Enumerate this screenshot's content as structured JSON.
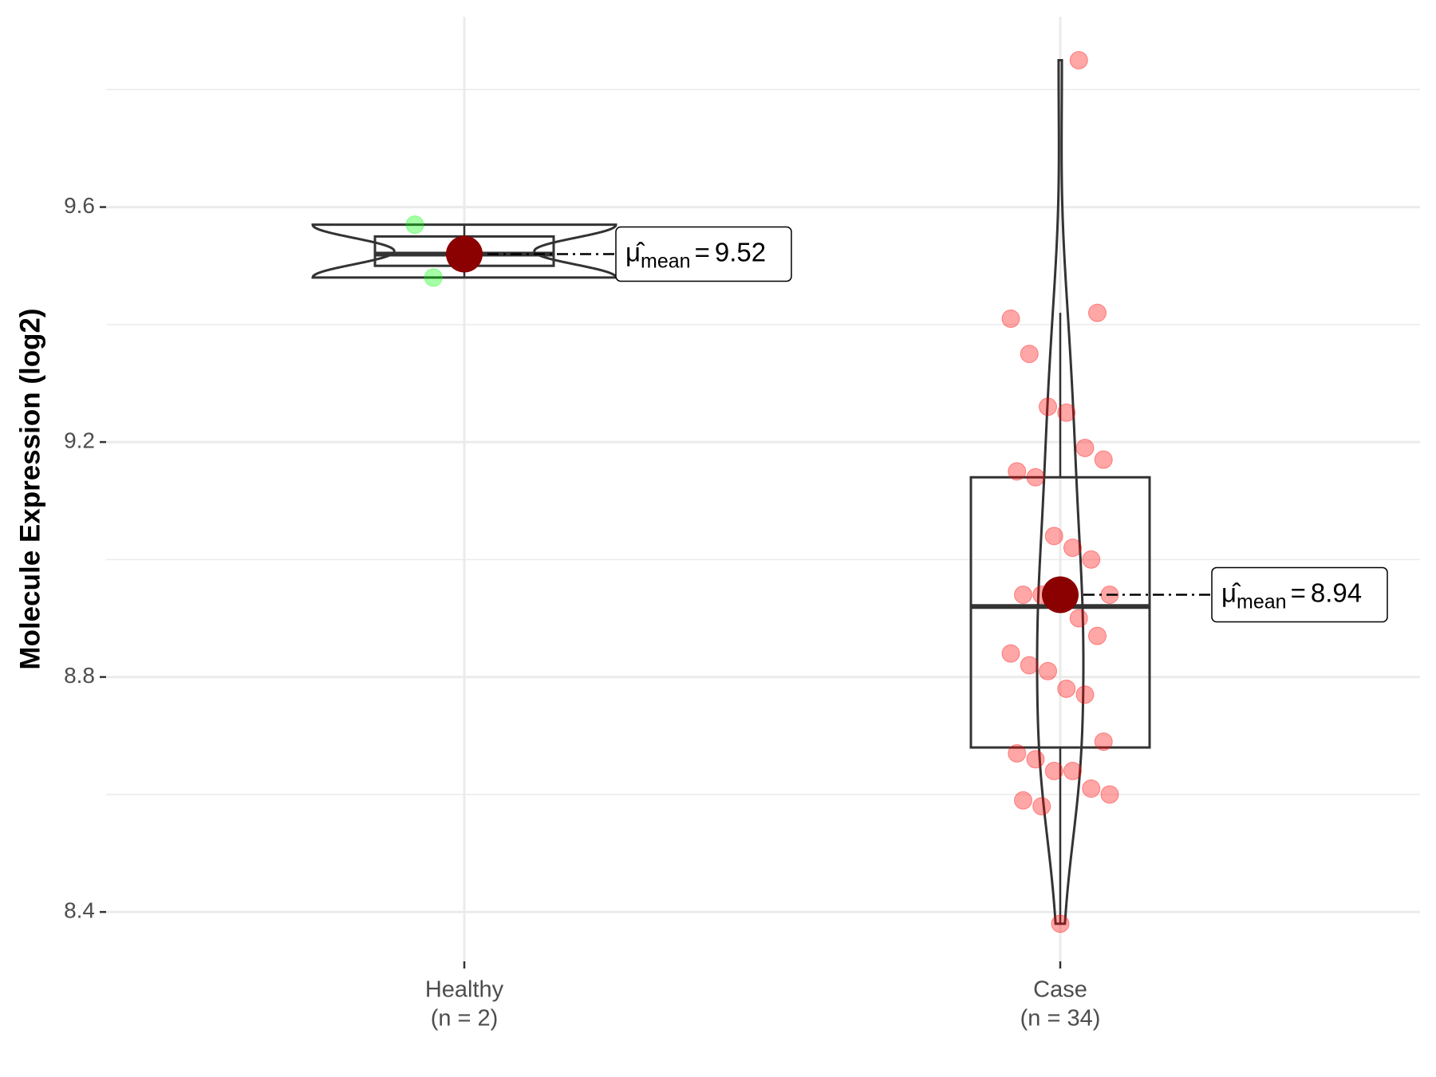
{
  "chart_data": {
    "type": "violin",
    "y_label": "Molecule Expression (log2)",
    "categories": [
      "Healthy",
      "Case"
    ],
    "count_labels": [
      "(n = 2)",
      "(n = 34)"
    ],
    "colors": [
      "#00ff00",
      "#ff0000"
    ],
    "points": [
      [
        9.57,
        9.48
      ],
      [
        9.85,
        9.42,
        9.41,
        9.35,
        9.26,
        9.25,
        9.19,
        9.17,
        9.15,
        9.14,
        9.04,
        9.02,
        9.0,
        8.94,
        8.94,
        8.94,
        8.93,
        8.9,
        8.87,
        8.84,
        8.82,
        8.81,
        8.78,
        8.77,
        8.69,
        8.67,
        8.66,
        8.64,
        8.64,
        8.61,
        8.6,
        8.59,
        8.58,
        8.38
      ]
    ],
    "box": [
      {
        "lower_whisker": 9.48,
        "q1": 9.5,
        "median": 9.52,
        "q3": 9.55,
        "upper_whisker": 9.57
      },
      {
        "lower_whisker": 8.38,
        "q1": 8.68,
        "median": 8.92,
        "q3": 9.14,
        "upper_whisker": 9.42
      }
    ],
    "means": [
      9.52,
      8.94
    ],
    "mean_color": "#8b0000",
    "mean_symbol": "μ̂",
    "mean_subscript": "mean",
    "mean_equals": "=",
    "ylim": [
      8.316,
      9.924
    ],
    "yticks": [
      8.4,
      8.8,
      9.2,
      9.6
    ],
    "minor_yticks": [
      8.6,
      9.0,
      9.4,
      9.8
    ],
    "grid": true
  }
}
